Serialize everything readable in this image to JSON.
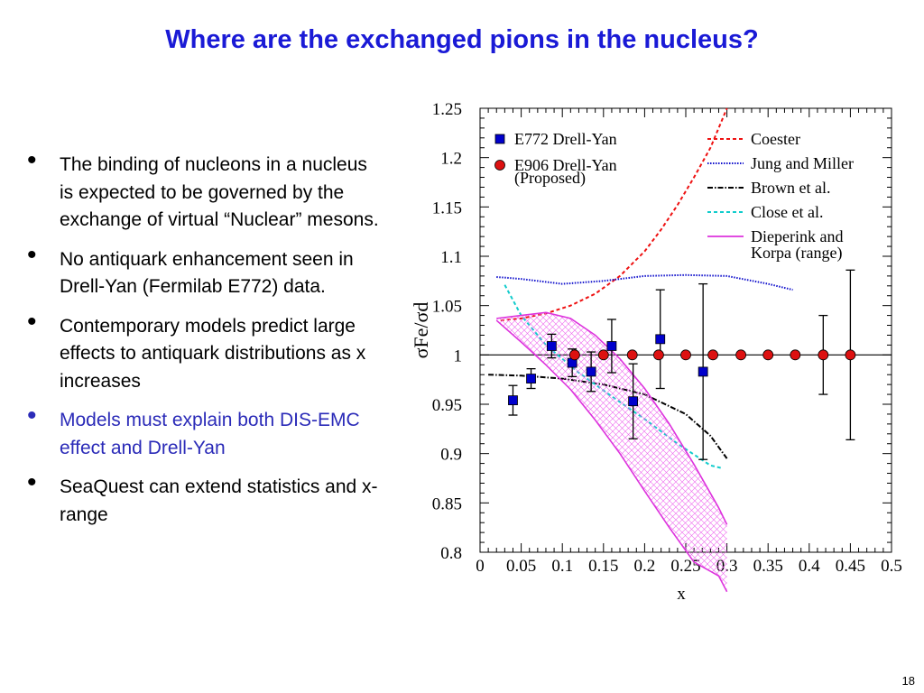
{
  "slide": {
    "title": "Where are the exchanged pions in the nucleus?",
    "page_number": "18",
    "bullets": [
      {
        "text": "The binding of nucleons in a nucleus is expected to be governed by the exchange of virtual “Nuclear” mesons.",
        "highlight": false
      },
      {
        "text": "No antiquark enhancement seen in Drell-Yan (Fermilab E772) data.",
        "highlight": false
      },
      {
        "text": "Contemporary models predict large effects to antiquark distributions as x increases",
        "highlight": false
      },
      {
        "text": "Models must explain both DIS-EMC effect and Drell-Yan",
        "highlight": true
      },
      {
        "text": "SeaQuest can extend statistics and x-range",
        "highlight": false
      }
    ],
    "bullet_symbol": "•"
  },
  "chart_data": {
    "type": "scatter",
    "xlabel": "x",
    "ylabel": "σFe/σd",
    "xlim": [
      0,
      0.5
    ],
    "ylim": [
      0.8,
      1.25
    ],
    "xticks": [
      "0",
      "0.05",
      "0.1",
      "0.15",
      "0.2",
      "0.25",
      "0.3",
      "0.35",
      "0.4",
      "0.45",
      "0.5"
    ],
    "yticks": [
      "0.8",
      "0.85",
      "0.9",
      "0.95",
      "1",
      "1.05",
      "1.1",
      "1.15",
      "1.2",
      "1.25"
    ],
    "reference_line": 1.0,
    "series": [
      {
        "name": "E772 Drell-Yan",
        "marker": "square",
        "color": "#0000cc",
        "points": [
          {
            "x": 0.04,
            "y": 0.954,
            "err": 0.015
          },
          {
            "x": 0.062,
            "y": 0.976,
            "err": 0.01
          },
          {
            "x": 0.087,
            "y": 1.009,
            "err": 0.012
          },
          {
            "x": 0.112,
            "y": 0.992,
            "err": 0.014
          },
          {
            "x": 0.135,
            "y": 0.983,
            "err": 0.02
          },
          {
            "x": 0.16,
            "y": 1.009,
            "err": 0.027
          },
          {
            "x": 0.186,
            "y": 0.953,
            "err": 0.038
          },
          {
            "x": 0.219,
            "y": 1.016,
            "err": 0.05
          },
          {
            "x": 0.271,
            "y": 0.983,
            "err": 0.089
          }
        ]
      },
      {
        "name": "E906 Drell-Yan",
        "name_line2": "(Proposed)",
        "marker": "circle",
        "color": "#dd1111",
        "points": [
          {
            "x": 0.115,
            "y": 1.0,
            "err": 0.0
          },
          {
            "x": 0.15,
            "y": 1.0,
            "err": 0.0
          },
          {
            "x": 0.185,
            "y": 1.0,
            "err": 0.0
          },
          {
            "x": 0.217,
            "y": 1.0,
            "err": 0.0
          },
          {
            "x": 0.25,
            "y": 1.0,
            "err": 0.0
          },
          {
            "x": 0.283,
            "y": 1.0,
            "err": 0.0
          },
          {
            "x": 0.317,
            "y": 1.0,
            "err": 0.0
          },
          {
            "x": 0.35,
            "y": 1.0,
            "err": 0.0
          },
          {
            "x": 0.383,
            "y": 1.0,
            "err": 0.0
          },
          {
            "x": 0.417,
            "y": 1.0,
            "err": 0.04
          },
          {
            "x": 0.45,
            "y": 1.0,
            "err": 0.086
          }
        ]
      }
    ],
    "models": [
      {
        "name": "Coester",
        "color": "#ee1111",
        "dash": "4,3",
        "x": [
          0.025,
          0.05,
          0.08,
          0.11,
          0.14,
          0.17,
          0.2,
          0.22,
          0.24,
          0.26,
          0.28,
          0.3
        ],
        "y": [
          1.035,
          1.037,
          1.042,
          1.05,
          1.062,
          1.08,
          1.105,
          1.127,
          1.152,
          1.18,
          1.21,
          1.25
        ]
      },
      {
        "name": "Jung and Miller",
        "color": "#1111cc",
        "dash": "1.5,1.5",
        "x": [
          0.02,
          0.05,
          0.1,
          0.15,
          0.2,
          0.25,
          0.3,
          0.35,
          0.38
        ],
        "y": [
          1.079,
          1.077,
          1.072,
          1.075,
          1.08,
          1.081,
          1.08,
          1.072,
          1.066
        ]
      },
      {
        "name": "Brown et al.",
        "color": "#000000",
        "dash": "6,2,1.5,2",
        "x": [
          0.01,
          0.05,
          0.1,
          0.15,
          0.2,
          0.25,
          0.28,
          0.3
        ],
        "y": [
          0.98,
          0.979,
          0.976,
          0.97,
          0.96,
          0.94,
          0.918,
          0.895
        ]
      },
      {
        "name": "Close et al.",
        "color": "#11cccc",
        "dash": "4,3",
        "x": [
          0.03,
          0.05,
          0.08,
          0.12,
          0.16,
          0.2,
          0.24,
          0.28,
          0.295
        ],
        "y": [
          1.071,
          1.04,
          1.01,
          0.982,
          0.958,
          0.935,
          0.91,
          0.888,
          0.885
        ]
      },
      {
        "name": "Dieperink and",
        "name_line2": "Korpa (range)",
        "color": "#dd33dd",
        "band": true,
        "x": [
          0.02,
          0.05,
          0.08,
          0.11,
          0.14,
          0.17,
          0.2,
          0.23,
          0.26,
          0.29,
          0.3
        ],
        "upper": [
          1.037,
          1.04,
          1.043,
          1.037,
          1.02,
          0.996,
          0.966,
          0.93,
          0.889,
          0.845,
          0.828
        ],
        "lower": [
          1.035,
          1.013,
          0.99,
          0.965,
          0.934,
          0.9,
          0.862,
          0.825,
          0.79,
          0.776,
          0.76
        ]
      }
    ]
  }
}
